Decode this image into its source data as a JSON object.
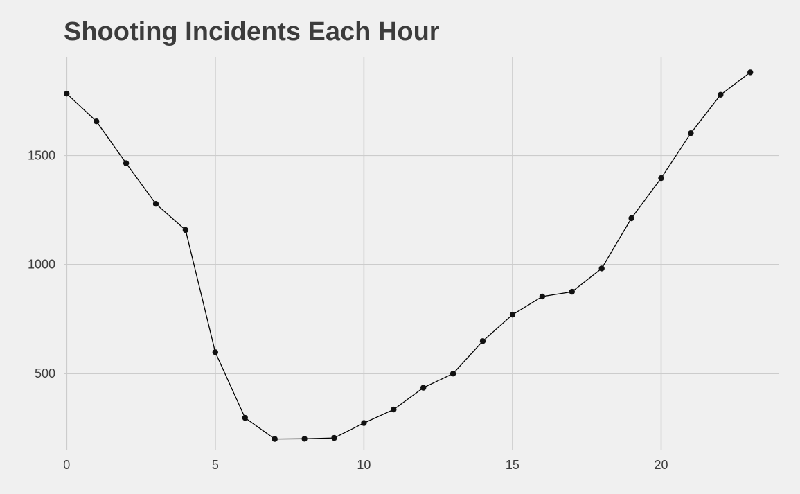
{
  "chart_data": {
    "type": "line",
    "title": "Shooting Incidents Each Hour",
    "xlabel": "",
    "ylabel": "",
    "x": [
      0,
      1,
      2,
      3,
      4,
      5,
      6,
      7,
      8,
      9,
      10,
      11,
      12,
      13,
      14,
      15,
      16,
      17,
      18,
      19,
      20,
      21,
      22,
      23
    ],
    "values": [
      1783,
      1656,
      1464,
      1278,
      1158,
      598,
      297,
      200,
      201,
      205,
      273,
      335,
      435,
      500,
      649,
      770,
      853,
      875,
      982,
      1212,
      1396,
      1602,
      1778,
      1881
    ],
    "xticks": [
      0,
      5,
      10,
      15,
      20
    ],
    "yticks": [
      500,
      1000,
      1500
    ],
    "xlim": [
      -0.1,
      23.95
    ],
    "ylim": [
      148,
      1952
    ],
    "grid": true,
    "legend": "none",
    "colors": {
      "background": "#f0f0f0",
      "grid": "#cccccc",
      "line": "#000000",
      "text": "#3c3c3c"
    }
  }
}
